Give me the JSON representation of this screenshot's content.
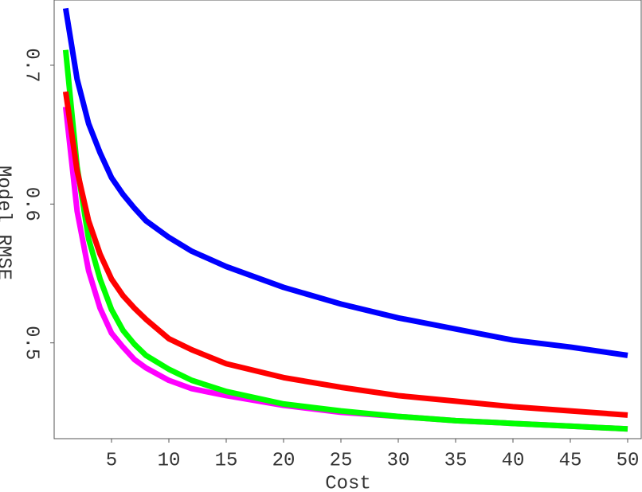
{
  "chart_data": {
    "type": "line",
    "x_label": "Cost",
    "y_label": "Model RMSE",
    "x": [
      1,
      2,
      3,
      4,
      5,
      6,
      7,
      8,
      10,
      12,
      15,
      20,
      25,
      30,
      35,
      40,
      45,
      50
    ],
    "xlim": [
      0,
      51.25
    ],
    "xticks": [
      5,
      10,
      15,
      20,
      25,
      30,
      35,
      40,
      45,
      50
    ],
    "ylim": [
      0.431,
      0.747
    ],
    "yticks": [
      0.5,
      0.6,
      0.7
    ],
    "series": [
      {
        "color": "#ff00ff",
        "values": [
          0.67,
          0.595,
          0.552,
          0.525,
          0.507,
          0.497,
          0.488,
          0.482,
          0.473,
          0.467,
          0.462,
          0.455,
          0.45,
          0.447,
          0.444,
          0.442,
          0.44,
          0.438
        ]
      },
      {
        "color": "#00ff00",
        "values": [
          0.711,
          0.627,
          0.575,
          0.546,
          0.524,
          0.509,
          0.499,
          0.491,
          0.481,
          0.473,
          0.465,
          0.456,
          0.451,
          0.447,
          0.444,
          0.442,
          0.44,
          0.438
        ]
      },
      {
        "color": "#ff0000",
        "values": [
          0.681,
          0.624,
          0.588,
          0.564,
          0.546,
          0.534,
          0.525,
          0.517,
          0.503,
          0.495,
          0.485,
          0.475,
          0.468,
          0.462,
          0.458,
          0.454,
          0.451,
          0.448
        ]
      },
      {
        "color": "#0000ff",
        "values": [
          0.741,
          0.69,
          0.658,
          0.637,
          0.619,
          0.607,
          0.597,
          0.588,
          0.576,
          0.566,
          0.555,
          0.54,
          0.528,
          0.518,
          0.51,
          0.502,
          0.497,
          0.491
        ]
      }
    ]
  }
}
